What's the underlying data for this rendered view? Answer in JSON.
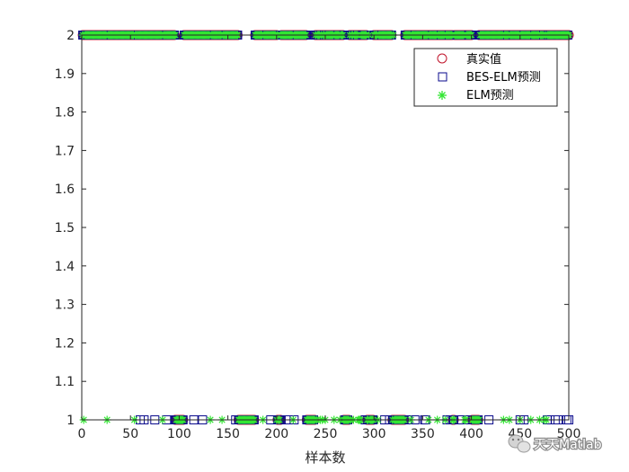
{
  "chart_data": {
    "type": "scatter",
    "xlabel": "样本数",
    "ylabel": "",
    "title": "",
    "xlim": [
      0,
      500
    ],
    "ylim": [
      1,
      2
    ],
    "x_ticks": [
      0,
      50,
      100,
      150,
      200,
      250,
      300,
      350,
      400,
      450,
      500
    ],
    "y_ticks": [
      1,
      1.1,
      1.2,
      1.3,
      1.4,
      1.5,
      1.6,
      1.7,
      1.8,
      1.9,
      2
    ],
    "y_tick_labels": [
      "1",
      "1.1",
      "1.2",
      "1.3",
      "1.4",
      "1.5",
      "1.6",
      "1.7",
      "1.8",
      "1.9",
      "2"
    ],
    "grid": false,
    "legend_position": "top-right",
    "class2_ranges": [
      [
        1,
        95
      ],
      [
        105,
        160
      ],
      [
        178,
        200
      ],
      [
        205,
        230
      ],
      [
        240,
        268
      ],
      [
        275,
        292
      ],
      [
        300,
        318
      ],
      [
        332,
        380
      ],
      [
        383,
        400
      ],
      [
        408,
        500
      ]
    ],
    "series": [
      {
        "name": "真实值",
        "marker": "circle",
        "color": "#c0142b"
      },
      {
        "name": "BES-ELM预测",
        "marker": "square",
        "color": "#0a0a8c"
      },
      {
        "name": "ELM预测",
        "marker": "asterisk",
        "color": "#33e633"
      }
    ]
  },
  "watermark": {
    "text": "天天Matlab",
    "icon": "wechat-icon"
  }
}
